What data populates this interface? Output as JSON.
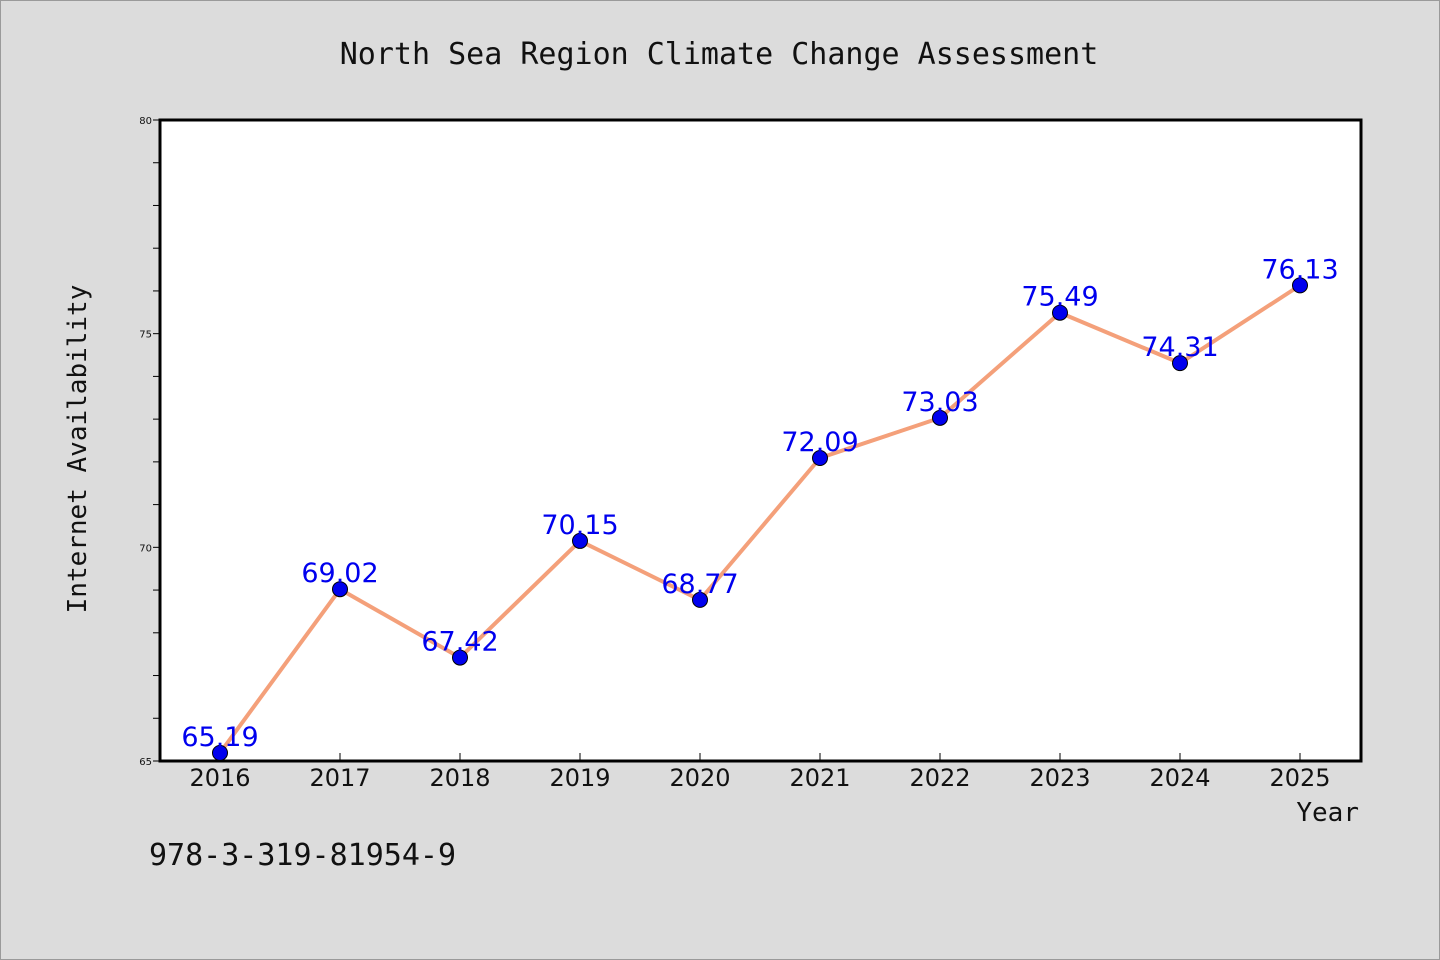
{
  "chart_data": {
    "type": "line",
    "title": "North Sea Region Climate Change Assessment",
    "xlabel": "Year",
    "ylabel": "Internet Availability",
    "categories": [
      "2016",
      "2017",
      "2018",
      "2019",
      "2020",
      "2021",
      "2022",
      "2023",
      "2024",
      "2025"
    ],
    "series": [
      {
        "values": [
          65.19,
          69.02,
          67.42,
          70.15,
          68.77,
          72.09,
          73.03,
          75.49,
          74.31,
          76.13
        ],
        "labels": [
          "65.19",
          "69.02",
          "67.42",
          "70.15",
          "68.77",
          "72.09",
          "73.03",
          "75.49",
          "74.31",
          "76.13"
        ]
      }
    ],
    "ylim": [
      65,
      80
    ],
    "yticks": [
      "65",
      "70",
      "75",
      "80"
    ],
    "grid": false,
    "legend": "none",
    "colors": {
      "line": "#f4a07a",
      "marker": "#0000ee",
      "label": "#0000ee",
      "background": "#dcdcdc",
      "plot_background": "#ffffff"
    }
  },
  "footer": {
    "identifier": "978-3-319-81954-9"
  }
}
